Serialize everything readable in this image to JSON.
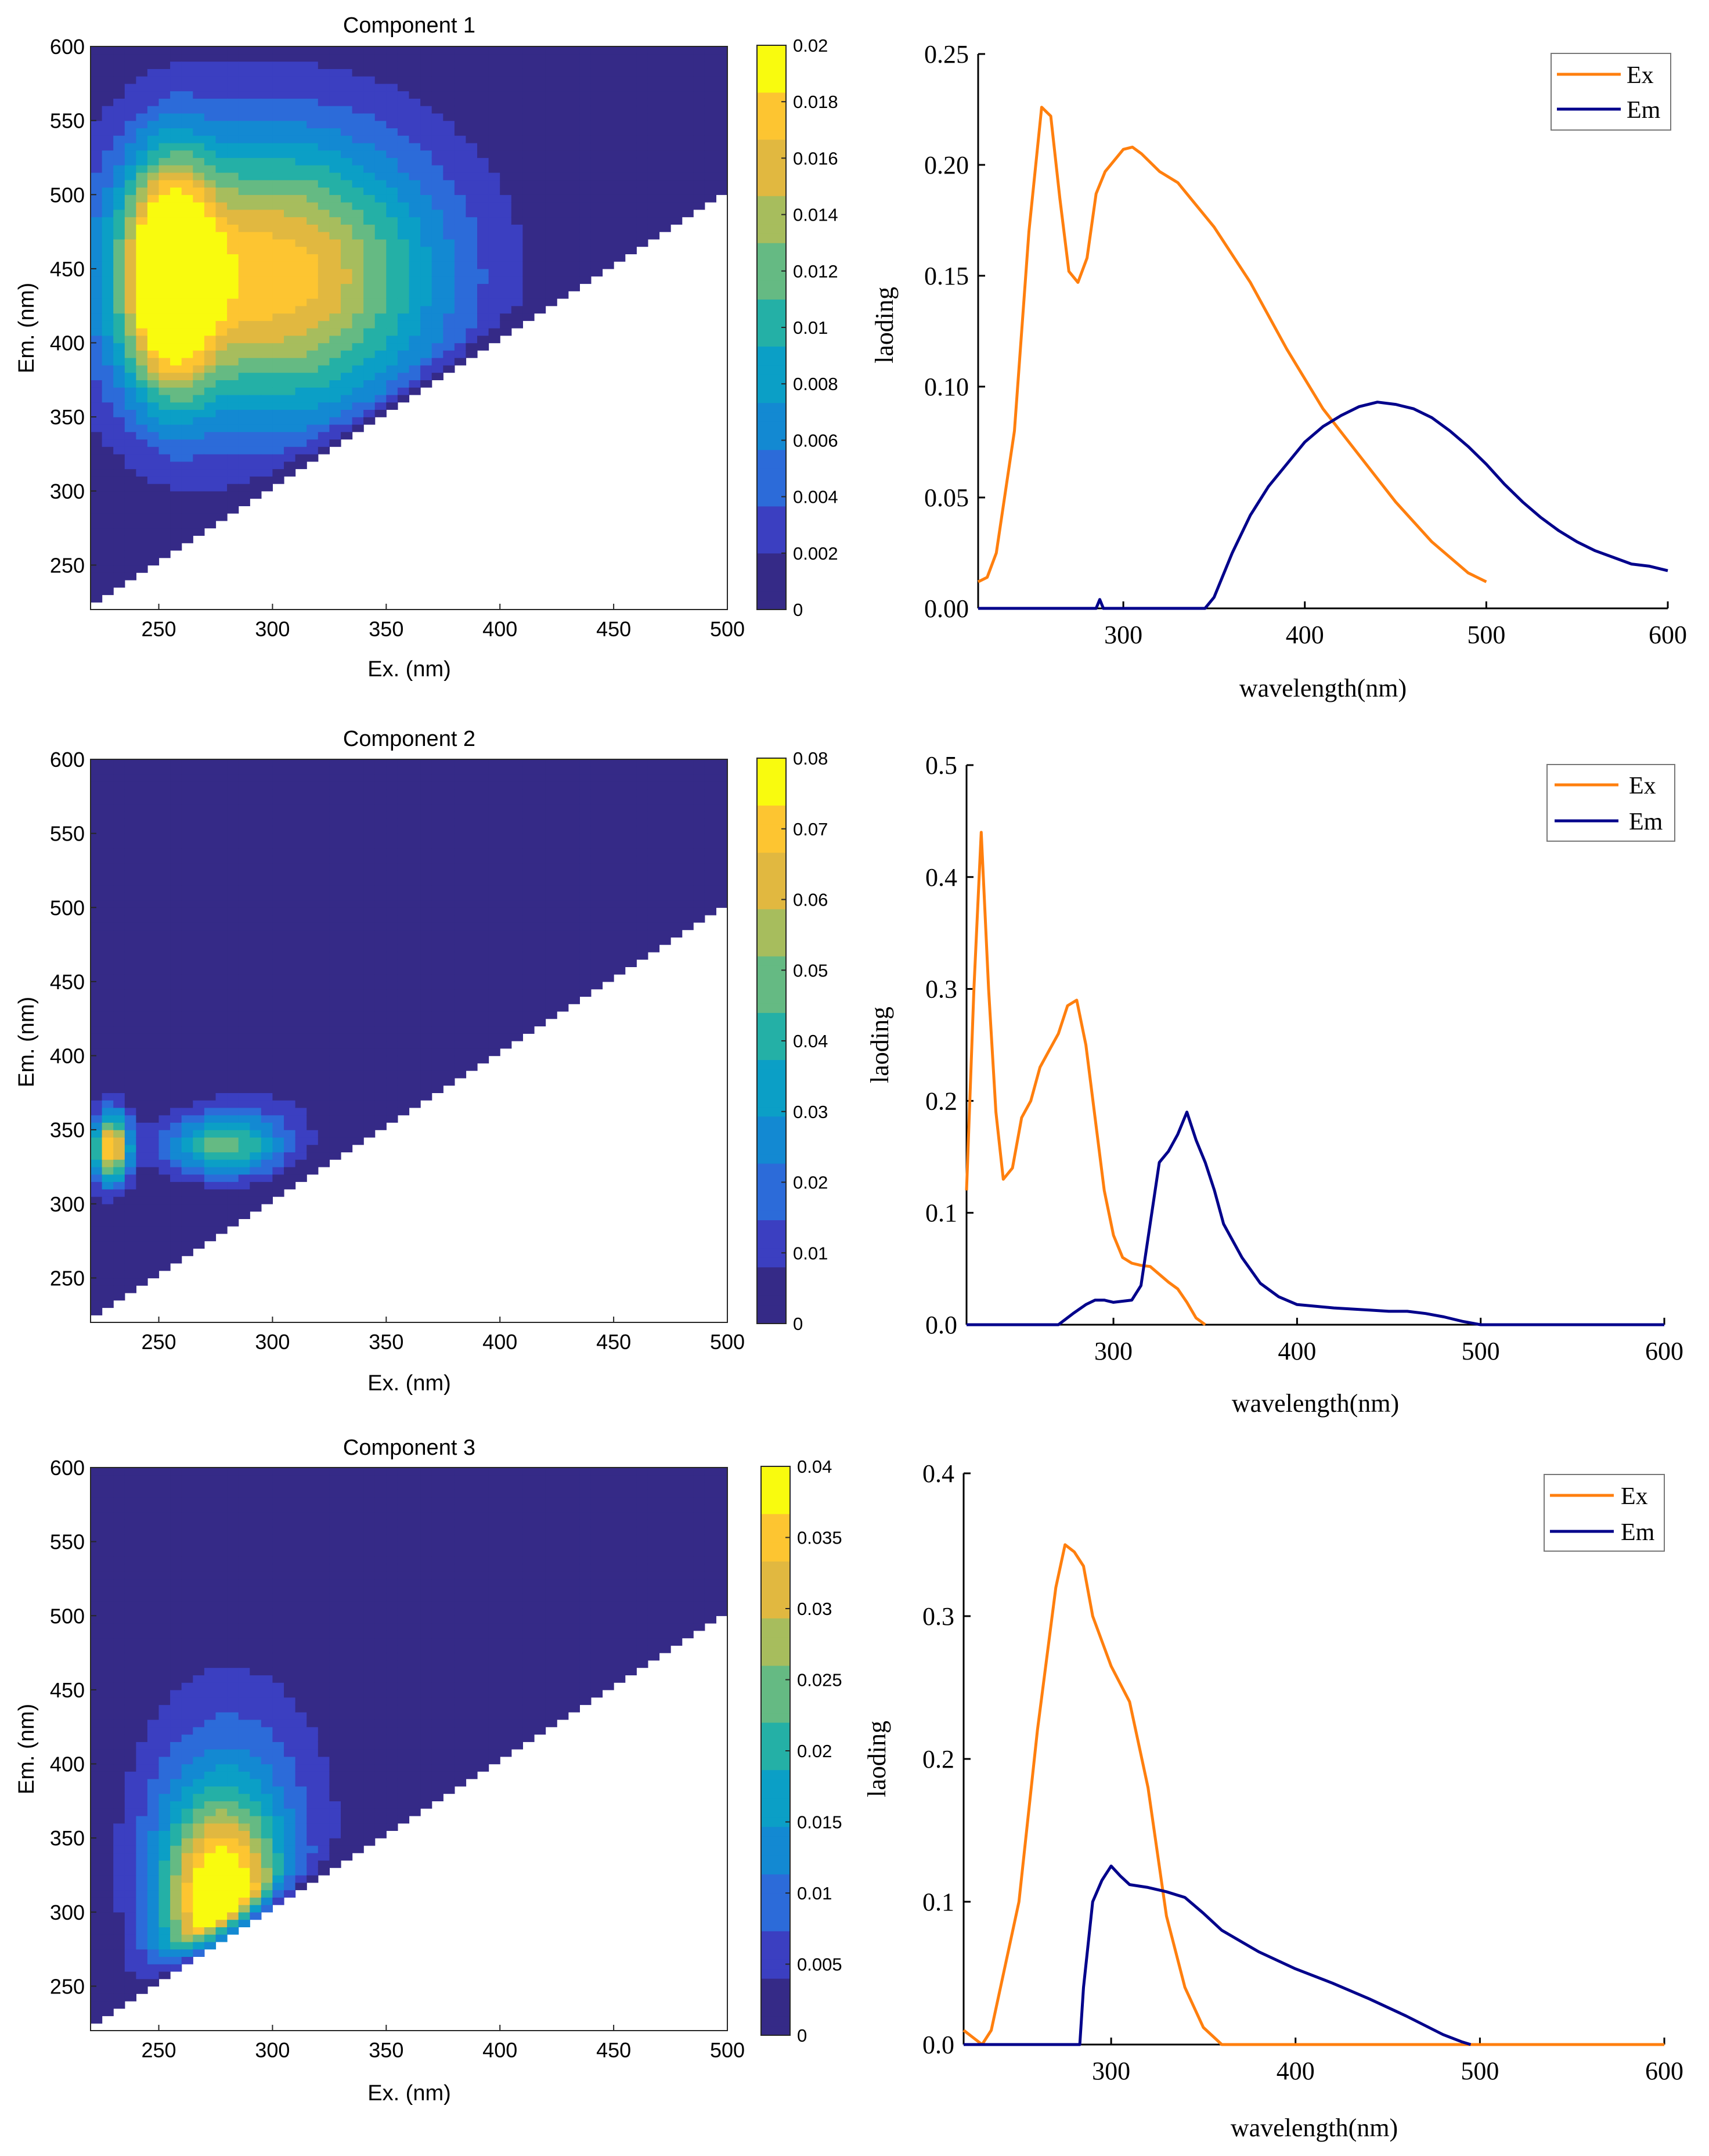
{
  "colors": {
    "ex": "#ff7f0e",
    "em": "#00008b",
    "parula": [
      "#352a87",
      "#3b3fc1",
      "#2c6bd9",
      "#1389d2",
      "#0b9fc6",
      "#24b0a6",
      "#65ba83",
      "#a7bd5d",
      "#e1b840",
      "#fdc531",
      "#f9fb0e"
    ]
  },
  "chart_data": [
    {
      "type": "heatmap",
      "panel": "eem-1",
      "title": "Component 1",
      "xlabel": "Ex. (nm)",
      "ylabel": "Em. (nm)",
      "xlim": [
        220,
        500
      ],
      "ylim": [
        220,
        600
      ],
      "xticks": [
        250,
        300,
        350,
        400,
        450,
        500
      ],
      "yticks": [
        250,
        300,
        350,
        400,
        450,
        500,
        550,
        600
      ],
      "colorbar": {
        "min": 0,
        "max": 0.02,
        "ticks": [
          "0",
          "0.002",
          "0.004",
          "0.006",
          "0.008",
          "0.01",
          "0.012",
          "0.014",
          "0.016",
          "0.018",
          "0.02"
        ]
      },
      "peaks": [
        {
          "ex": 255,
          "em": 445,
          "sx": 13,
          "sy": 52,
          "amp": 0.0205
        },
        {
          "ex": 300,
          "em": 445,
          "sx": 52,
          "sy": 68,
          "amp": 0.0195
        }
      ]
    },
    {
      "type": "line",
      "panel": "loading-1",
      "xlabel": "wavelength(nm)",
      "ylabel": "laoding",
      "xlim": [
        220,
        600
      ],
      "ylim": [
        0,
        0.25
      ],
      "xticks": [
        "300",
        "400",
        "500",
        "600"
      ],
      "yticks": [
        "0.00",
        "0.05",
        "0.10",
        "0.15",
        "0.20",
        "0.25"
      ],
      "legend_position": "top-right",
      "series": [
        {
          "name": "Ex",
          "x": [
            220,
            225,
            230,
            240,
            248,
            255,
            260,
            265,
            270,
            275,
            280,
            285,
            290,
            300,
            305,
            310,
            320,
            330,
            350,
            370,
            390,
            410,
            430,
            450,
            470,
            490,
            500
          ],
          "y": [
            0.012,
            0.014,
            0.025,
            0.08,
            0.17,
            0.226,
            0.222,
            0.185,
            0.152,
            0.147,
            0.158,
            0.187,
            0.197,
            0.207,
            0.208,
            0.205,
            0.197,
            0.192,
            0.172,
            0.147,
            0.117,
            0.09,
            0.069,
            0.048,
            0.03,
            0.016,
            0.012
          ]
        },
        {
          "name": "Em",
          "x": [
            220,
            285,
            287,
            289,
            291,
            345,
            350,
            360,
            370,
            380,
            390,
            400,
            410,
            420,
            430,
            440,
            450,
            460,
            470,
            480,
            490,
            500,
            510,
            520,
            530,
            540,
            550,
            560,
            570,
            580,
            590,
            600
          ],
          "y": [
            0,
            0,
            0.004,
            0,
            0,
            0,
            0.005,
            0.025,
            0.042,
            0.055,
            0.065,
            0.075,
            0.082,
            0.087,
            0.091,
            0.093,
            0.092,
            0.09,
            0.086,
            0.08,
            0.073,
            0.065,
            0.056,
            0.048,
            0.041,
            0.035,
            0.03,
            0.026,
            0.023,
            0.02,
            0.019,
            0.017
          ]
        }
      ]
    },
    {
      "type": "heatmap",
      "panel": "eem-2",
      "title": "Component 2",
      "xlabel": "Ex. (nm)",
      "ylabel": "Em. (nm)",
      "xlim": [
        220,
        500
      ],
      "ylim": [
        220,
        600
      ],
      "xticks": [
        250,
        300,
        350,
        400,
        450,
        500
      ],
      "yticks": [
        250,
        300,
        350,
        400,
        450,
        500,
        550,
        600
      ],
      "colorbar": {
        "min": 0,
        "max": 0.08,
        "ticks": [
          "0",
          "0.01",
          "0.02",
          "0.03",
          "0.04",
          "0.05",
          "0.06",
          "0.07",
          "0.08"
        ]
      },
      "peaks": [
        {
          "ex": 229,
          "em": 338,
          "sx": 6,
          "sy": 17,
          "amp": 0.078
        },
        {
          "ex": 278,
          "em": 338,
          "sx": 18,
          "sy": 14,
          "amp": 0.046
        },
        {
          "ex": 290,
          "em": 355,
          "sx": 22,
          "sy": 18,
          "amp": 0.012
        }
      ]
    },
    {
      "type": "line",
      "panel": "loading-2",
      "xlabel": "wavelength(nm)",
      "ylabel": "laoding",
      "xlim": [
        220,
        600
      ],
      "ylim": [
        0,
        0.5
      ],
      "xticks": [
        "300",
        "400",
        "500",
        "600"
      ],
      "yticks": [
        "0.0",
        "0.1",
        "0.2",
        "0.3",
        "0.4",
        "0.5"
      ],
      "legend_position": "top-right",
      "series": [
        {
          "name": "Ex",
          "x": [
            220,
            224,
            228,
            232,
            236,
            240,
            245,
            250,
            255,
            260,
            265,
            270,
            275,
            280,
            285,
            290,
            295,
            300,
            305,
            310,
            315,
            320,
            325,
            330,
            335,
            340,
            345,
            350
          ],
          "y": [
            0.12,
            0.3,
            0.44,
            0.3,
            0.19,
            0.13,
            0.14,
            0.185,
            0.2,
            0.23,
            0.245,
            0.26,
            0.285,
            0.29,
            0.25,
            0.185,
            0.12,
            0.08,
            0.06,
            0.055,
            0.053,
            0.052,
            0.045,
            0.038,
            0.032,
            0.02,
            0.006,
            0.0
          ]
        },
        {
          "name": "Em",
          "x": [
            220,
            270,
            278,
            285,
            290,
            295,
            300,
            310,
            315,
            320,
            325,
            330,
            335,
            340,
            345,
            350,
            355,
            360,
            370,
            380,
            390,
            400,
            420,
            440,
            450,
            460,
            470,
            480,
            490,
            500,
            600
          ],
          "y": [
            0,
            0,
            0.01,
            0.018,
            0.022,
            0.022,
            0.02,
            0.022,
            0.035,
            0.09,
            0.145,
            0.155,
            0.17,
            0.19,
            0.165,
            0.145,
            0.12,
            0.09,
            0.06,
            0.037,
            0.025,
            0.018,
            0.015,
            0.013,
            0.012,
            0.012,
            0.01,
            0.007,
            0.003,
            0.0,
            0.0
          ]
        }
      ]
    },
    {
      "type": "heatmap",
      "panel": "eem-3",
      "title": "Component 3",
      "xlabel": "Ex. (nm)",
      "ylabel": "Em. (nm)",
      "xlim": [
        220,
        500
      ],
      "ylim": [
        220,
        600
      ],
      "xticks": [
        250,
        300,
        350,
        400,
        450,
        500
      ],
      "yticks": [
        250,
        300,
        350,
        400,
        450,
        500,
        550,
        600
      ],
      "colorbar": {
        "min": 0,
        "max": 0.04,
        "ticks": [
          "0",
          "0.005",
          "0.01",
          "0.015",
          "0.02",
          "0.025",
          "0.03",
          "0.035",
          "0.04"
        ]
      },
      "peaks": [
        {
          "ex": 277,
          "em": 303,
          "sx": 18,
          "sy": 48,
          "amp": 0.041
        },
        {
          "ex": 282,
          "em": 360,
          "sx": 30,
          "sy": 70,
          "amp": 0.012
        }
      ]
    },
    {
      "type": "line",
      "panel": "loading-3",
      "xlabel": "wavelength(nm)",
      "ylabel": "laoding",
      "xlim": [
        220,
        600
      ],
      "ylim": [
        0,
        0.4
      ],
      "xticks": [
        "300",
        "400",
        "500",
        "600"
      ],
      "yticks": [
        "0.0",
        "0.1",
        "0.2",
        "0.3",
        "0.4"
      ],
      "legend_position": "top-right",
      "series": [
        {
          "name": "Ex",
          "x": [
            220,
            225,
            230,
            235,
            240,
            250,
            260,
            270,
            275,
            280,
            285,
            290,
            300,
            310,
            320,
            330,
            340,
            350,
            360,
            600
          ],
          "y": [
            0.01,
            0.005,
            0.0,
            0.01,
            0.04,
            0.1,
            0.22,
            0.32,
            0.35,
            0.345,
            0.335,
            0.3,
            0.265,
            0.24,
            0.18,
            0.09,
            0.04,
            0.012,
            0.0,
            0.0
          ]
        },
        {
          "name": "Em",
          "x": [
            220,
            283,
            285,
            290,
            295,
            300,
            305,
            310,
            320,
            330,
            340,
            350,
            360,
            380,
            400,
            420,
            440,
            460,
            480,
            490,
            495
          ],
          "y": [
            0,
            0,
            0.04,
            0.1,
            0.115,
            0.125,
            0.118,
            0.112,
            0.11,
            0.107,
            0.103,
            0.092,
            0.08,
            0.065,
            0.053,
            0.043,
            0.032,
            0.02,
            0.007,
            0.002,
            0.0
          ]
        }
      ]
    }
  ]
}
